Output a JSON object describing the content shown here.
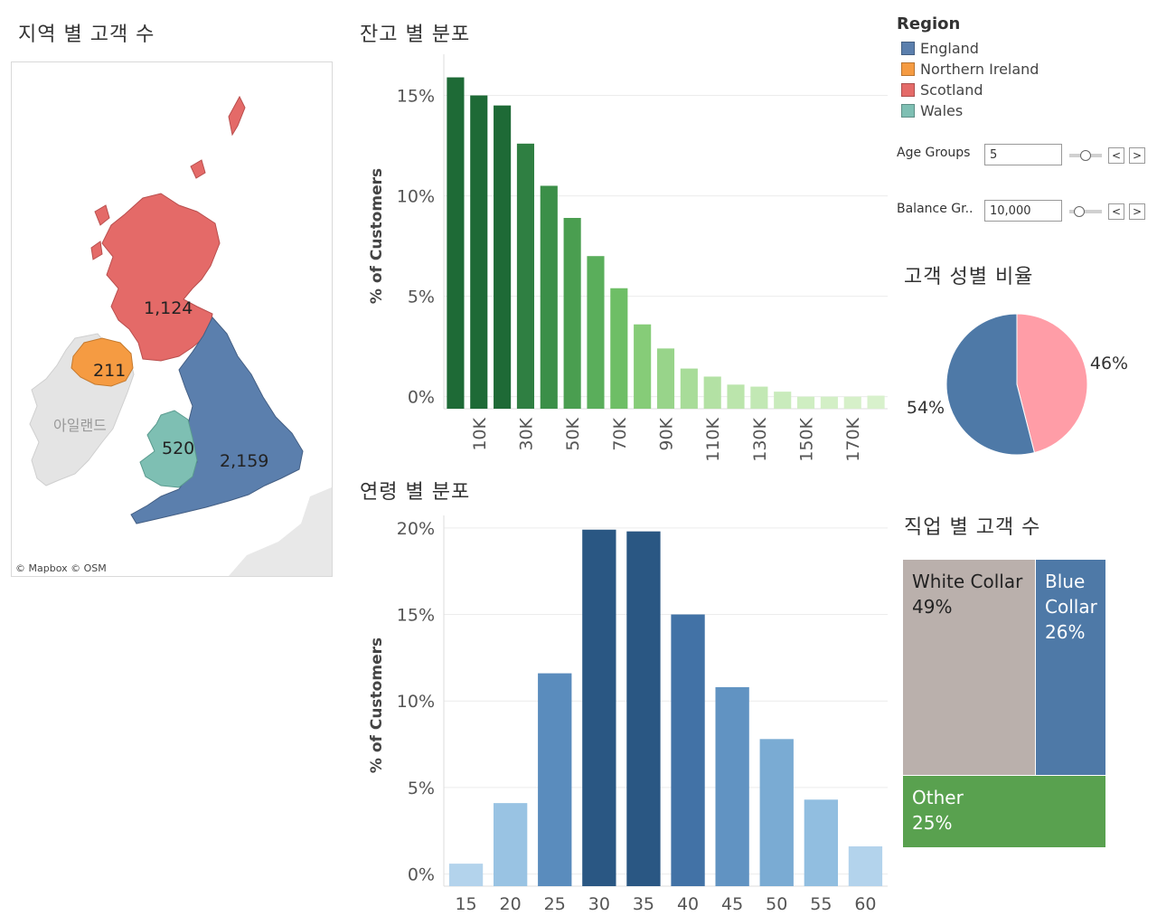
{
  "map": {
    "title": "지역 별 고객 수",
    "credit": "© Mapbox © OSM",
    "ireland_label": "아일랜드",
    "regions": [
      {
        "name": "England",
        "count": "2,159",
        "color": "#5b7fad"
      },
      {
        "name": "Northern Ireland",
        "count": "211",
        "color": "#f59b42"
      },
      {
        "name": "Scotland",
        "count": "1,124",
        "color": "#e46a68"
      },
      {
        "name": "Wales",
        "count": "520",
        "color": "#7ebfb3"
      }
    ]
  },
  "legend": {
    "title": "Region",
    "items": [
      {
        "label": "England",
        "color": "#5b7fad"
      },
      {
        "label": "Northern Ireland",
        "color": "#f59b42"
      },
      {
        "label": "Scotland",
        "color": "#e46a68"
      },
      {
        "label": "Wales",
        "color": "#7ebfb3"
      }
    ]
  },
  "params": {
    "age_groups": {
      "label": "Age Groups",
      "value": "5",
      "prev": "<",
      "next": ">"
    },
    "balance_groups": {
      "label": "Balance Gr..",
      "value": "10,000",
      "prev": "<",
      "next": ">"
    }
  },
  "balance_chart": {
    "title": "잔고 별 분포",
    "chart_data": {
      "type": "bar",
      "ylabel": "% of Customers",
      "ylim": [
        -0.6,
        16.6
      ],
      "yticks": [
        {
          "v": 0,
          "label": "0%"
        },
        {
          "v": 5,
          "label": "5%"
        },
        {
          "v": 10,
          "label": "10%"
        },
        {
          "v": 15,
          "label": "15%"
        }
      ],
      "categories": [
        "0K",
        "10K",
        "20K",
        "30K",
        "40K",
        "50K",
        "60K",
        "70K",
        "80K",
        "90K",
        "100K",
        "110K",
        "120K",
        "130K",
        "140K",
        "150K",
        "160K",
        "170K",
        "180K"
      ],
      "visible_ticks": [
        "10K",
        "30K",
        "50K",
        "70K",
        "90K",
        "110K",
        "130K",
        "150K",
        "170K"
      ],
      "values": [
        15.9,
        15.0,
        14.5,
        12.6,
        10.5,
        8.9,
        7.0,
        5.4,
        3.6,
        2.4,
        1.4,
        1.0,
        0.6,
        0.5,
        0.25,
        0.0,
        0.0,
        0.0,
        0.05
      ],
      "colors": [
        "#1e6a36",
        "#1e6a36",
        "#1e6a36",
        "#2f7f42",
        "#3b8f48",
        "#4a9e50",
        "#5aae5b",
        "#6ebe66",
        "#86cc78",
        "#98d48a",
        "#a8dc99",
        "#b3e1a4",
        "#bbe5ac",
        "#c2e8b4",
        "#c9ebbc",
        "#cfeec2",
        "#d3efc6",
        "#d6f0c9",
        "#d8f1cc"
      ]
    }
  },
  "age_chart": {
    "title": "연령 별 분포",
    "chart_data": {
      "type": "bar",
      "ylabel": "% of Customers",
      "ylim": [
        -0.7,
        20.2
      ],
      "yticks": [
        {
          "v": 0,
          "label": "0%"
        },
        {
          "v": 5,
          "label": "5%"
        },
        {
          "v": 10,
          "label": "10%"
        },
        {
          "v": 15,
          "label": "15%"
        },
        {
          "v": 20,
          "label": "20%"
        }
      ],
      "categories": [
        "15",
        "20",
        "25",
        "30",
        "35",
        "40",
        "45",
        "50",
        "55",
        "60"
      ],
      "values": [
        0.6,
        4.1,
        11.6,
        19.9,
        19.8,
        15.0,
        10.8,
        7.8,
        4.3,
        1.6
      ],
      "colors": [
        "#b3d3ec",
        "#99c3e3",
        "#5a8cbd",
        "#2a5783",
        "#2a5783",
        "#4272a6",
        "#6193c2",
        "#7aabd3",
        "#91bee0",
        "#b3d3ec"
      ]
    }
  },
  "gender_chart": {
    "title": "고객 성별 비율",
    "chart_data": {
      "type": "pie",
      "slices": [
        {
          "label": "54%",
          "value": 54,
          "color": "#4e79a7"
        },
        {
          "label": "46%",
          "value": 46,
          "color": "#ff9da7"
        }
      ]
    }
  },
  "job_chart": {
    "title": "직업 별 고객 수",
    "cells": [
      {
        "name": "White Collar",
        "pct": "49%",
        "color": "#bab0ac"
      },
      {
        "name": "Blue Collar",
        "pct": "26%",
        "color": "#4e79a7"
      },
      {
        "name": "Other",
        "pct": "25%",
        "color": "#59a14f"
      }
    ]
  }
}
